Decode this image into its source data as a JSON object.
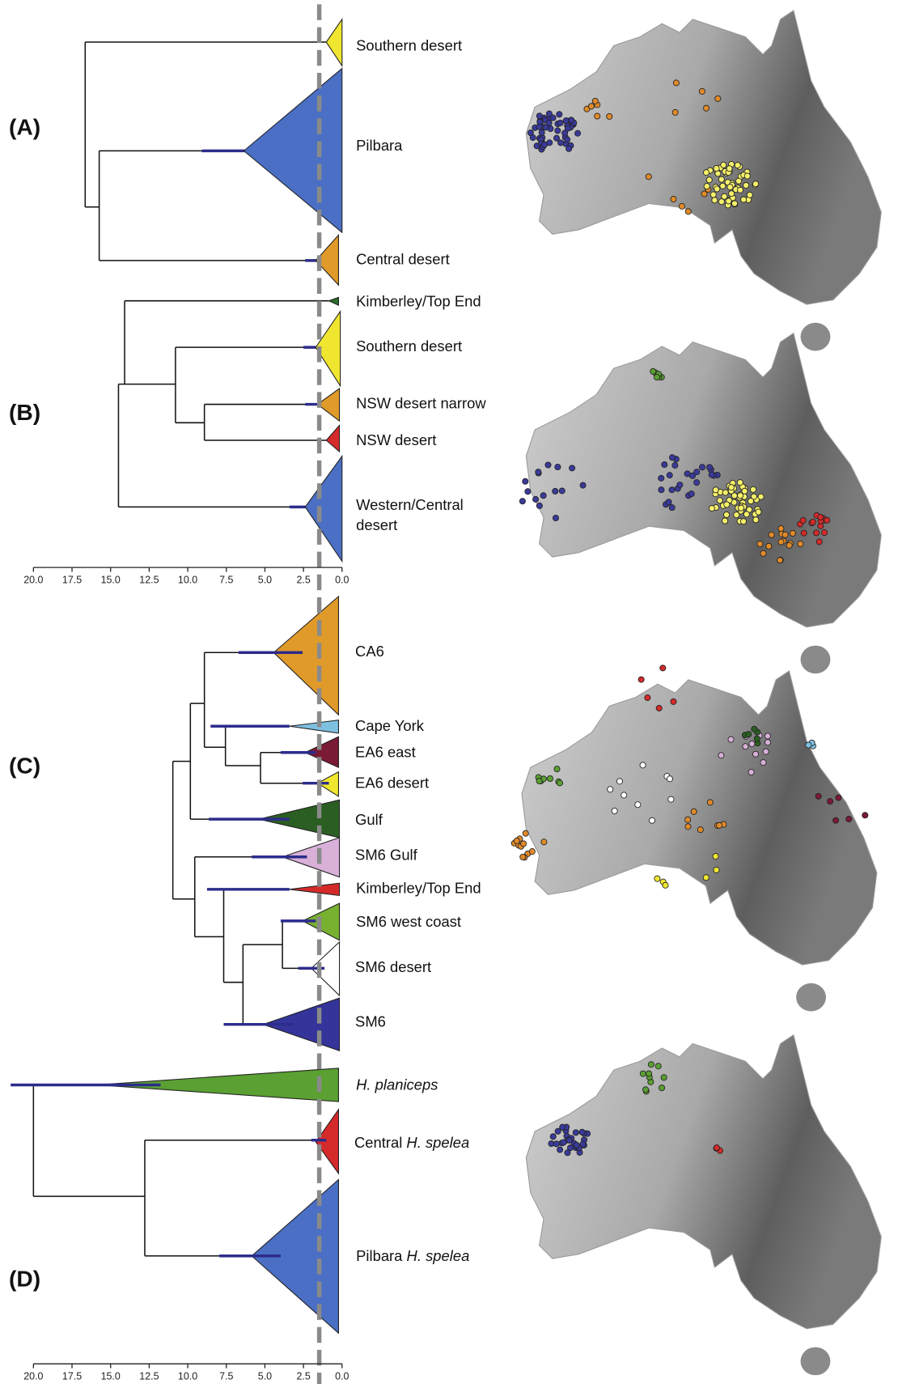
{
  "panels": [
    {
      "label": "(A)",
      "clades": [
        "Southern desert",
        "Pilbara",
        "Central desert"
      ]
    },
    {
      "label": "(B)",
      "clades": [
        "Kimberley/Top End",
        "Southern desert",
        "NSW desert narrow",
        "NSW desert",
        {
          "lines": [
            "Western/Central",
            "desert"
          ]
        }
      ]
    },
    {
      "label": "(C)",
      "clades": [
        "CA6",
        "Cape York",
        "EA6 east",
        "EA6 desert",
        "Gulf",
        "SM6 Gulf",
        "Kimberley/Top End",
        "SM6 west coast",
        "SM6 desert",
        "SM6"
      ]
    },
    {
      "label": "(D)",
      "clades": [
        {
          "italic": "H. planiceps"
        },
        {
          "prefix": "Central",
          "italic": "H. spelea"
        },
        {
          "prefix": "Pilbara",
          "italic": "H. spelea"
        }
      ]
    }
  ],
  "axes": [
    {
      "ticks": [
        {
          "value": 20,
          "label": "20.0"
        },
        17.5,
        {
          "value": 15,
          "label": "15.0"
        },
        12.5,
        {
          "value": 10,
          "label": "10.0"
        },
        7.5,
        {
          "value": 5,
          "label": "5.0"
        },
        2.5,
        {
          "value": 0,
          "label": "0.0"
        }
      ]
    },
    {
      "ticks": [
        {
          "value": 20,
          "label": "20.0"
        },
        17.5,
        {
          "value": 15,
          "label": "15.0"
        },
        12.5,
        {
          "value": 10,
          "label": "10.0"
        },
        7.5,
        {
          "value": 5,
          "label": "5.0"
        },
        2.5,
        {
          "value": 0,
          "label": "0.0"
        }
      ]
    }
  ]
}
